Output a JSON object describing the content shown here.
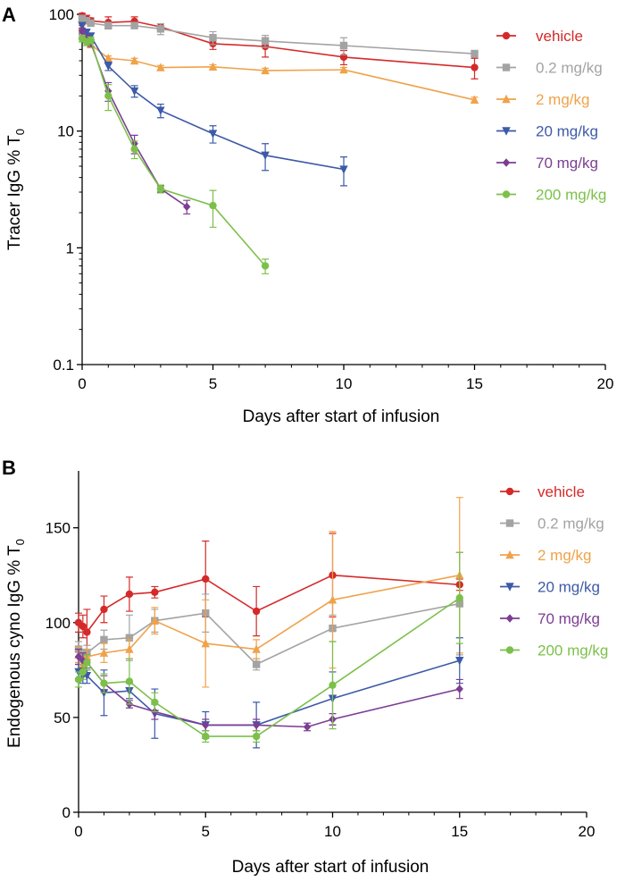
{
  "colors": {
    "vehicle": "#d42a2a",
    "0.2 mg/kg": "#a3a3a3",
    "2 mg/kg": "#f0a24a",
    "20 mg/kg": "#3d5aa8",
    "70 mg/kg": "#7b3e93",
    "200 mg/kg": "#7cc04a"
  },
  "chart_data": [
    {
      "panel_label": "A",
      "type": "line",
      "yscale": "log",
      "xlabel": "Days after start of infusion",
      "ylabel": "Tracer IgG % T",
      "ylabel_sub": "0",
      "xlim": [
        0,
        20
      ],
      "ylim": [
        0.1,
        100
      ],
      "xticks": [
        "0",
        "5",
        "10",
        "15",
        "20"
      ],
      "yticks": [
        "0.1",
        "1",
        "10",
        "100"
      ],
      "legend_position": "right",
      "series": [
        {
          "name": "vehicle",
          "marker": "circle",
          "x": [
            0,
            0.17,
            0.33,
            1,
            2,
            3,
            5,
            7,
            10,
            15
          ],
          "y": [
            97,
            92,
            88,
            85,
            87,
            78,
            56,
            53,
            43,
            35
          ],
          "err": [
            5,
            6,
            5,
            10,
            8,
            5,
            6,
            10,
            6,
            7
          ]
        },
        {
          "name": "0.2 mg/kg",
          "marker": "square",
          "x": [
            0,
            0.17,
            0.33,
            1,
            2,
            3,
            5,
            7,
            10,
            15
          ],
          "y": [
            92,
            88,
            84,
            80,
            80,
            75,
            63,
            59,
            54,
            46
          ],
          "err": [
            4,
            4,
            4,
            4,
            4,
            8,
            8,
            7,
            9,
            3
          ]
        },
        {
          "name": "2 mg/kg",
          "marker": "triangle-up",
          "x": [
            0,
            0.17,
            0.33,
            1,
            2,
            3,
            5,
            7,
            10,
            15
          ],
          "y": [
            78,
            65,
            55,
            42,
            40,
            35,
            35.5,
            33,
            33.5,
            18.5
          ],
          "err": [
            3,
            3,
            3,
            2,
            2,
            1.5,
            1.5,
            1.5,
            1.5,
            1
          ]
        },
        {
          "name": "20 mg/kg",
          "marker": "triangle-down",
          "x": [
            0,
            0.17,
            0.33,
            1,
            2,
            3,
            5,
            7,
            10
          ],
          "y": [
            80,
            70,
            65,
            36,
            22,
            15,
            9.5,
            6.2,
            4.7
          ],
          "err": [
            4,
            4,
            4,
            3,
            2.5,
            2,
            1.6,
            1.6,
            1.3
          ]
        },
        {
          "name": "70 mg/kg",
          "marker": "diamond",
          "x": [
            0,
            0.17,
            0.33,
            1,
            2,
            3,
            4
          ],
          "y": [
            72,
            62,
            57,
            22,
            7.8,
            3.2,
            2.25
          ],
          "err": [
            4,
            4,
            4,
            4,
            1.4,
            0.2,
            0.3
          ]
        },
        {
          "name": "200 mg/kg",
          "marker": "circle",
          "x": [
            0,
            0.17,
            0.33,
            1,
            2,
            3,
            5,
            7
          ],
          "y": [
            62,
            58,
            60,
            20,
            7,
            3.2,
            2.3,
            0.7
          ],
          "err": [
            4,
            4,
            4,
            5,
            1.2,
            0.25,
            0.8,
            0.1
          ]
        }
      ]
    },
    {
      "panel_label": "B",
      "type": "line",
      "yscale": "linear",
      "xlabel": "Days after start of infusion",
      "ylabel": "Endogenous cyno IgG % T",
      "ylabel_sub": "0",
      "xlim": [
        0,
        20
      ],
      "ylim": [
        0,
        180
      ],
      "xticks": [
        "0",
        "5",
        "10",
        "15",
        "20"
      ],
      "yticks": [
        "0",
        "50",
        "100",
        "150"
      ],
      "legend_position": "right",
      "series": [
        {
          "name": "vehicle",
          "marker": "circle",
          "x": [
            0,
            0.17,
            0.33,
            1,
            2,
            3,
            5,
            7,
            10,
            15
          ],
          "y": [
            100,
            98,
            95,
            107,
            115,
            116,
            123,
            106,
            125,
            120
          ],
          "err": [
            5,
            6,
            12,
            7,
            9,
            3,
            20,
            13,
            22,
            3
          ]
        },
        {
          "name": "0.2 mg/kg",
          "marker": "square",
          "x": [
            0,
            0.17,
            0.33,
            1,
            2,
            3,
            5,
            7,
            10,
            15
          ],
          "y": [
            86,
            82,
            84,
            91,
            92,
            101,
            105,
            78,
            97,
            110
          ],
          "err": [
            4,
            4,
            4,
            5,
            12,
            6,
            10,
            3,
            7,
            27
          ]
        },
        {
          "name": "2 mg/kg",
          "marker": "triangle-up",
          "x": [
            0,
            0.17,
            0.33,
            1,
            2,
            3,
            5,
            7,
            10,
            15
          ],
          "y": [
            83,
            78,
            82,
            84,
            86,
            101,
            89,
            86,
            112,
            125
          ],
          "err": [
            4,
            4,
            4,
            5,
            5,
            7,
            23,
            5,
            36,
            41
          ]
        },
        {
          "name": "20 mg/kg",
          "marker": "triangle-down",
          "x": [
            0,
            0.17,
            0.33,
            1,
            2,
            3,
            5,
            7,
            10,
            15
          ],
          "y": [
            74,
            72,
            72,
            63,
            64,
            52,
            46,
            46,
            60,
            80
          ],
          "err": [
            4,
            4,
            4,
            12,
            4,
            13,
            7,
            12,
            14,
            12
          ]
        },
        {
          "name": "70 mg/kg",
          "marker": "diamond",
          "x": [
            0,
            0.17,
            0.33,
            1,
            2,
            3,
            5,
            7,
            9,
            10,
            15
          ],
          "y": [
            82,
            80,
            79,
            68,
            57,
            53,
            46,
            46,
            45,
            49,
            65
          ],
          "err": [
            4,
            4,
            4,
            4,
            2,
            4,
            3,
            3,
            2,
            3,
            5
          ]
        },
        {
          "name": "200 mg/kg",
          "marker": "circle",
          "x": [
            0,
            0.17,
            0.33,
            1,
            2,
            3,
            5,
            7,
            10,
            15
          ],
          "y": [
            70,
            74,
            79,
            68,
            69,
            58,
            40,
            40,
            67,
            113
          ],
          "err": [
            4,
            4,
            4,
            5,
            12,
            5,
            3,
            3,
            23,
            24
          ]
        }
      ]
    }
  ]
}
